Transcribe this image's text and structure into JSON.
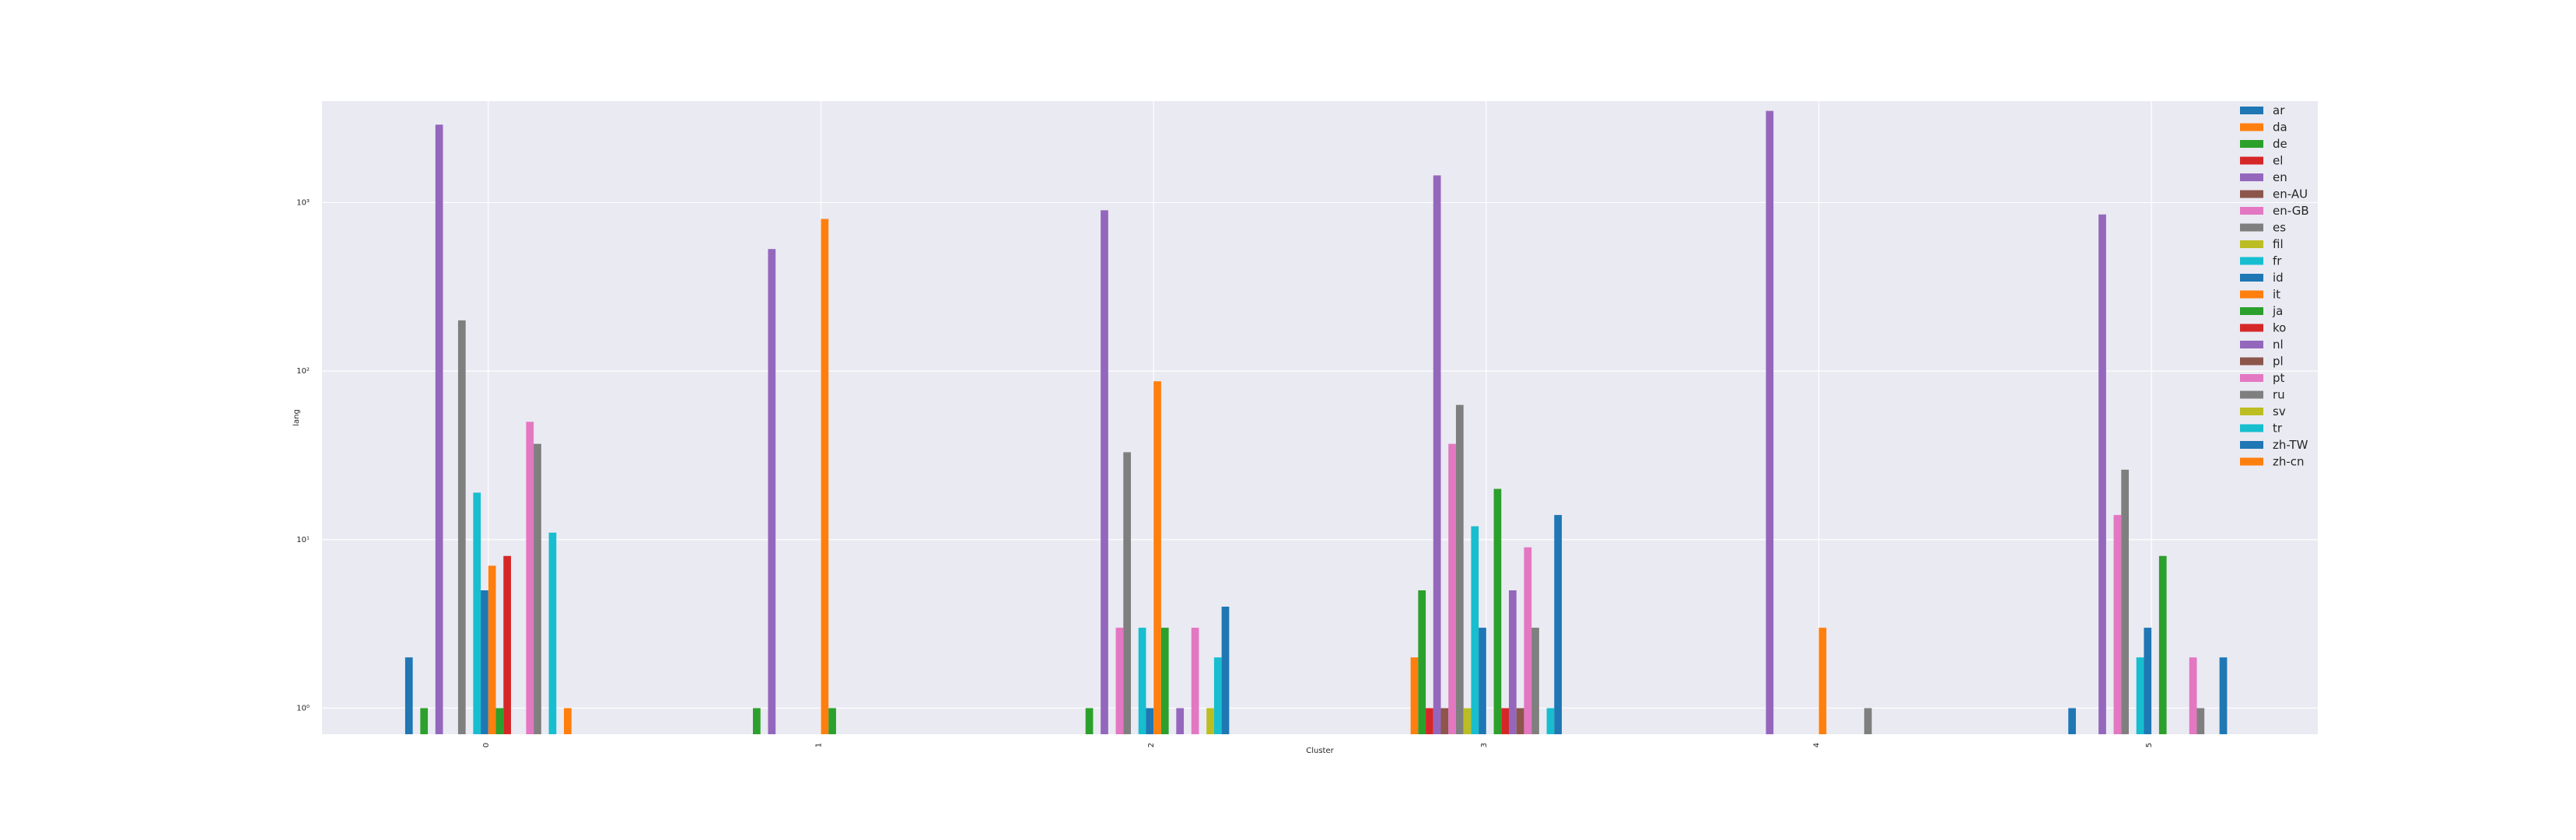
{
  "chart_data": {
    "type": "bar",
    "xlabel": "Cluster",
    "ylabel": "lang",
    "yscale": "log",
    "ylim": [
      0.7,
      4000
    ],
    "grid": true,
    "legend_position": "top-right",
    "categories": [
      "0",
      "1",
      "2",
      "3",
      "4",
      "5"
    ],
    "y_ticks": [
      {
        "value": 1,
        "label": "10⁰"
      },
      {
        "value": 10,
        "label": "10¹"
      },
      {
        "value": 100,
        "label": "10²"
      },
      {
        "value": 1000,
        "label": "10³"
      }
    ],
    "series": [
      {
        "name": "ar",
        "color": "#1f77b4",
        "values": [
          2,
          null,
          null,
          null,
          null,
          1
        ]
      },
      {
        "name": "da",
        "color": "#ff7f0e",
        "values": [
          null,
          null,
          null,
          2,
          null,
          null
        ]
      },
      {
        "name": "de",
        "color": "#2ca02c",
        "values": [
          1,
          1,
          1,
          5,
          null,
          null
        ]
      },
      {
        "name": "el",
        "color": "#d62728",
        "values": [
          null,
          null,
          null,
          1,
          null,
          null
        ]
      },
      {
        "name": "en",
        "color": "#9467bd",
        "values": [
          2900,
          530,
          900,
          1450,
          3500,
          850
        ]
      },
      {
        "name": "en-AU",
        "color": "#8c564b",
        "values": [
          null,
          null,
          null,
          1,
          null,
          null
        ]
      },
      {
        "name": "en-GB",
        "color": "#e377c2",
        "values": [
          null,
          null,
          3,
          37,
          null,
          14
        ]
      },
      {
        "name": "es",
        "color": "#7f7f7f",
        "values": [
          200,
          null,
          33,
          63,
          null,
          26
        ]
      },
      {
        "name": "fil",
        "color": "#bcbd22",
        "values": [
          null,
          null,
          null,
          1,
          null,
          null
        ]
      },
      {
        "name": "fr",
        "color": "#17becf",
        "values": [
          19,
          null,
          3,
          12,
          null,
          2
        ]
      },
      {
        "name": "id",
        "color": "#1f77b4",
        "values": [
          5,
          null,
          1,
          3,
          null,
          3
        ]
      },
      {
        "name": "it",
        "color": "#ff7f0e",
        "values": [
          7,
          800,
          87,
          null,
          3,
          null
        ]
      },
      {
        "name": "ja",
        "color": "#2ca02c",
        "values": [
          1,
          1,
          3,
          20,
          null,
          8
        ]
      },
      {
        "name": "ko",
        "color": "#d62728",
        "values": [
          8,
          null,
          null,
          1,
          null,
          null
        ]
      },
      {
        "name": "nl",
        "color": "#9467bd",
        "values": [
          null,
          null,
          1,
          5,
          null,
          null
        ]
      },
      {
        "name": "pl",
        "color": "#8c564b",
        "values": [
          null,
          null,
          null,
          1,
          null,
          null
        ]
      },
      {
        "name": "pt",
        "color": "#e377c2",
        "values": [
          50,
          null,
          3,
          9,
          null,
          2
        ]
      },
      {
        "name": "ru",
        "color": "#7f7f7f",
        "values": [
          37,
          null,
          null,
          3,
          1,
          1
        ]
      },
      {
        "name": "sv",
        "color": "#bcbd22",
        "values": [
          null,
          null,
          1,
          null,
          null,
          null
        ]
      },
      {
        "name": "tr",
        "color": "#17becf",
        "values": [
          11,
          null,
          2,
          1,
          null,
          null
        ]
      },
      {
        "name": "zh-TW",
        "color": "#1f77b4",
        "values": [
          null,
          null,
          4,
          14,
          null,
          2
        ]
      },
      {
        "name": "zh-cn",
        "color": "#ff7f0e",
        "values": [
          1,
          null,
          null,
          null,
          null,
          null
        ]
      }
    ]
  }
}
